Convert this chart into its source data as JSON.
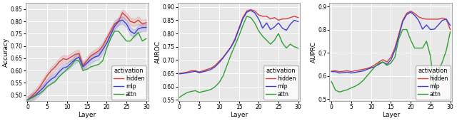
{
  "plots": [
    {
      "ylabel": "Accuracy",
      "xlabel": "Layer",
      "ylim": [
        0.475,
        0.875
      ],
      "yticks": [
        0.5,
        0.55,
        0.6,
        0.65,
        0.7,
        0.75,
        0.8,
        0.85
      ],
      "xticks": [
        0,
        5,
        10,
        15,
        20,
        25,
        30
      ],
      "hidden": [
        0.48,
        0.495,
        0.51,
        0.53,
        0.555,
        0.58,
        0.6,
        0.615,
        0.635,
        0.648,
        0.645,
        0.655,
        0.665,
        0.67,
        0.62,
        0.64,
        0.66,
        0.67,
        0.68,
        0.7,
        0.73,
        0.76,
        0.79,
        0.8,
        0.835,
        0.82,
        0.8,
        0.795,
        0.805,
        0.79,
        0.795
      ],
      "mlp": [
        0.48,
        0.49,
        0.5,
        0.515,
        0.53,
        0.55,
        0.565,
        0.575,
        0.595,
        0.61,
        0.615,
        0.63,
        0.645,
        0.655,
        0.615,
        0.63,
        0.645,
        0.655,
        0.66,
        0.685,
        0.71,
        0.745,
        0.78,
        0.8,
        0.805,
        0.79,
        0.76,
        0.75,
        0.77,
        0.775,
        0.775
      ],
      "attn": [
        0.48,
        0.488,
        0.497,
        0.505,
        0.518,
        0.535,
        0.545,
        0.555,
        0.575,
        0.59,
        0.605,
        0.62,
        0.64,
        0.64,
        0.6,
        0.605,
        0.615,
        0.62,
        0.625,
        0.64,
        0.69,
        0.73,
        0.76,
        0.76,
        0.74,
        0.72,
        0.72,
        0.74,
        0.755,
        0.72,
        0.73
      ]
    },
    {
      "ylabel": "AUROC",
      "xlabel": "Layer",
      "ylim": [
        0.545,
        0.915
      ],
      "yticks": [
        0.55,
        0.6,
        0.65,
        0.7,
        0.75,
        0.8,
        0.85,
        0.9
      ],
      "xticks": [
        0,
        5,
        10,
        15,
        20,
        25,
        30
      ],
      "hidden": [
        0.65,
        0.652,
        0.655,
        0.66,
        0.66,
        0.655,
        0.66,
        0.665,
        0.67,
        0.68,
        0.695,
        0.71,
        0.73,
        0.75,
        0.78,
        0.82,
        0.86,
        0.885,
        0.89,
        0.885,
        0.87,
        0.865,
        0.865,
        0.855,
        0.86,
        0.85,
        0.855,
        0.855,
        0.86,
        0.865,
        0.86
      ],
      "mlp": [
        0.648,
        0.65,
        0.652,
        0.655,
        0.658,
        0.652,
        0.656,
        0.66,
        0.665,
        0.675,
        0.69,
        0.708,
        0.728,
        0.748,
        0.775,
        0.815,
        0.855,
        0.88,
        0.887,
        0.878,
        0.855,
        0.82,
        0.84,
        0.815,
        0.825,
        0.84,
        0.82,
        0.812,
        0.835,
        0.85,
        0.845
      ],
      "attn": [
        0.56,
        0.57,
        0.578,
        0.582,
        0.585,
        0.578,
        0.582,
        0.585,
        0.59,
        0.6,
        0.615,
        0.64,
        0.68,
        0.72,
        0.755,
        0.79,
        0.83,
        0.865,
        0.86,
        0.84,
        0.81,
        0.79,
        0.775,
        0.76,
        0.775,
        0.8,
        0.765,
        0.745,
        0.76,
        0.75,
        0.745
      ]
    },
    {
      "ylabel": "AUPRC",
      "xlabel": "Layer",
      "ylim": [
        0.49,
        0.915
      ],
      "yticks": [
        0.5,
        0.6,
        0.7,
        0.8,
        0.9
      ],
      "xticks": [
        0,
        5,
        10,
        15,
        20,
        25,
        30
      ],
      "hidden": [
        0.62,
        0.622,
        0.618,
        0.62,
        0.622,
        0.618,
        0.622,
        0.625,
        0.628,
        0.632,
        0.638,
        0.648,
        0.66,
        0.67,
        0.66,
        0.68,
        0.72,
        0.78,
        0.84,
        0.87,
        0.88,
        0.87,
        0.855,
        0.848,
        0.845,
        0.845,
        0.845,
        0.845,
        0.85,
        0.845,
        0.8
      ],
      "mlp": [
        0.618,
        0.618,
        0.612,
        0.614,
        0.616,
        0.612,
        0.615,
        0.618,
        0.621,
        0.628,
        0.634,
        0.64,
        0.65,
        0.66,
        0.65,
        0.668,
        0.71,
        0.77,
        0.835,
        0.865,
        0.875,
        0.862,
        0.84,
        0.802,
        0.82,
        0.8,
        0.802,
        0.82,
        0.84,
        0.845,
        0.818
      ],
      "attn": [
        0.575,
        0.538,
        0.53,
        0.535,
        0.54,
        0.548,
        0.555,
        0.565,
        0.58,
        0.6,
        0.62,
        0.64,
        0.655,
        0.66,
        0.645,
        0.655,
        0.68,
        0.76,
        0.8,
        0.8,
        0.755,
        0.72,
        0.72,
        0.72,
        0.75,
        0.685,
        0.54,
        0.62,
        0.66,
        0.71,
        0.79
      ]
    }
  ],
  "colors": {
    "hidden": "#d04040",
    "mlp": "#4040d0",
    "attn": "#30a030"
  },
  "legend_title": "activation",
  "legend_labels": [
    "hidden",
    "mlp",
    "attn"
  ],
  "linewidth": 1.0,
  "figsize": [
    6.4,
    1.7
  ],
  "dpi": 100,
  "bg_color": "#e8e8e8"
}
